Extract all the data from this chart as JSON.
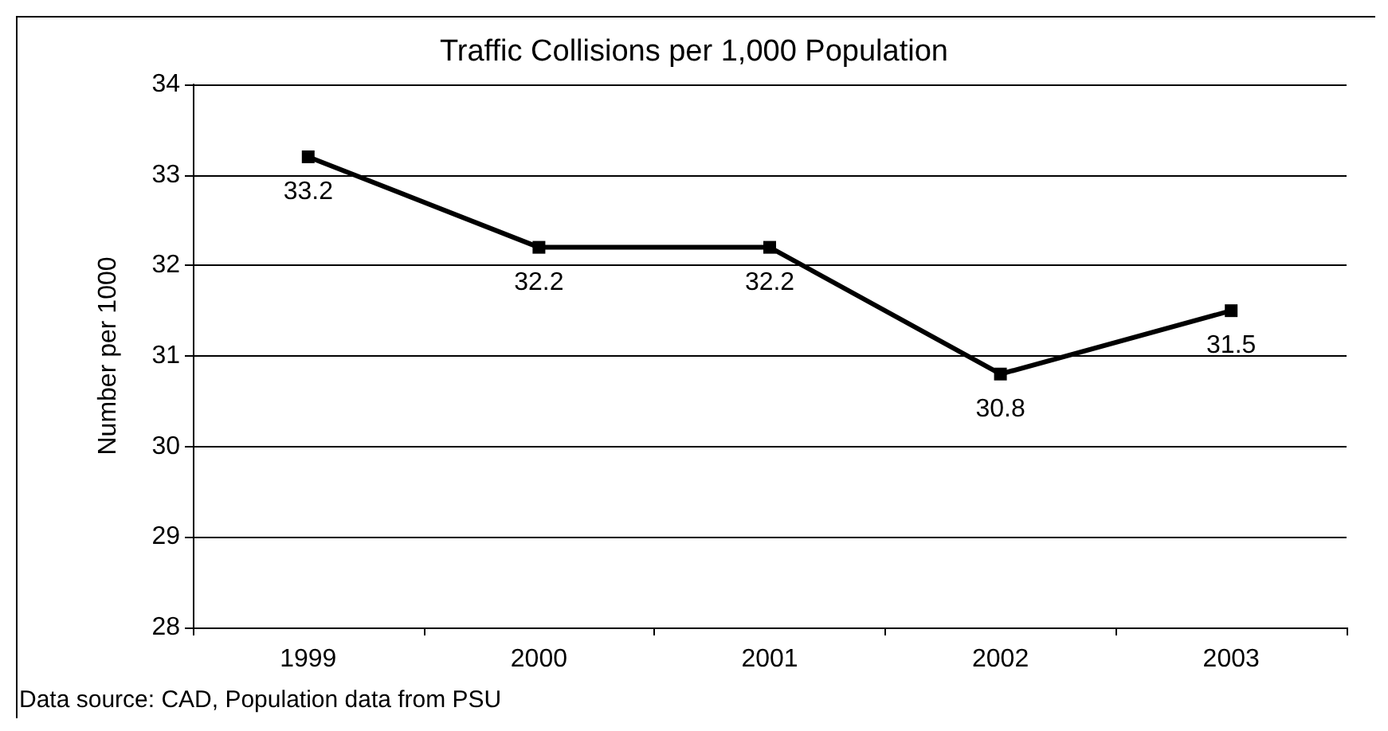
{
  "chart_data": {
    "type": "line",
    "title": "Traffic Collisions per 1,000 Population",
    "ylabel": "Number per 1000",
    "categories": [
      "1999",
      "2000",
      "2001",
      "2002",
      "2003"
    ],
    "series": [
      {
        "color": "#000000",
        "values": [
          33.2,
          32.2,
          32.2,
          30.8,
          31.5
        ]
      }
    ],
    "ylim": [
      28,
      34
    ],
    "yticks": [
      28,
      29,
      30,
      31,
      32,
      33,
      34
    ],
    "grid": "y",
    "marker": "square",
    "line_style": "solid",
    "data_labels": true,
    "annotations": [
      "Data source: CAD, Population data from PSU"
    ]
  }
}
